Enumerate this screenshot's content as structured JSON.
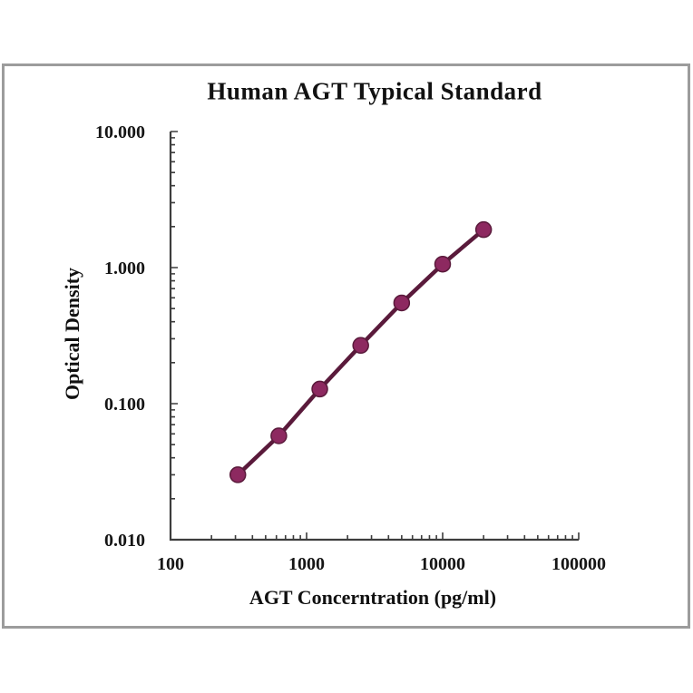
{
  "window": {
    "background_color": "#ffffff",
    "frame_border_color": "#9c9c9c"
  },
  "chart_data": {
    "type": "line",
    "title": "Human AGT Typical Standard",
    "xlabel": "AGT Concerntration (pg/ml)",
    "ylabel": "Optical Density",
    "x_scale": "log",
    "y_scale": "log",
    "xlim": [
      100,
      100000
    ],
    "ylim": [
      0.01,
      10
    ],
    "grid": false,
    "legend": false,
    "axis_color": "#3d3d3d",
    "x_ticks": [
      {
        "value": 100,
        "label": "100"
      },
      {
        "value": 1000,
        "label": "1000"
      },
      {
        "value": 10000,
        "label": "10000"
      },
      {
        "value": 100000,
        "label": "100000"
      }
    ],
    "y_ticks": [
      {
        "value": 0.01,
        "label": "0.010"
      },
      {
        "value": 0.1,
        "label": "0.100"
      },
      {
        "value": 1,
        "label": "1.000"
      },
      {
        "value": 10,
        "label": "10.000"
      }
    ],
    "series": [
      {
        "name": "Human AGT Typical Standard",
        "x": [
          312.5,
          625,
          1250,
          2500,
          5000,
          10000,
          20000
        ],
        "y": [
          0.03,
          0.058,
          0.128,
          0.268,
          0.55,
          1.06,
          1.9
        ],
        "line_color": "#5a1a3b",
        "marker_color": "#8d2960",
        "marker_shape": "circle"
      }
    ]
  }
}
